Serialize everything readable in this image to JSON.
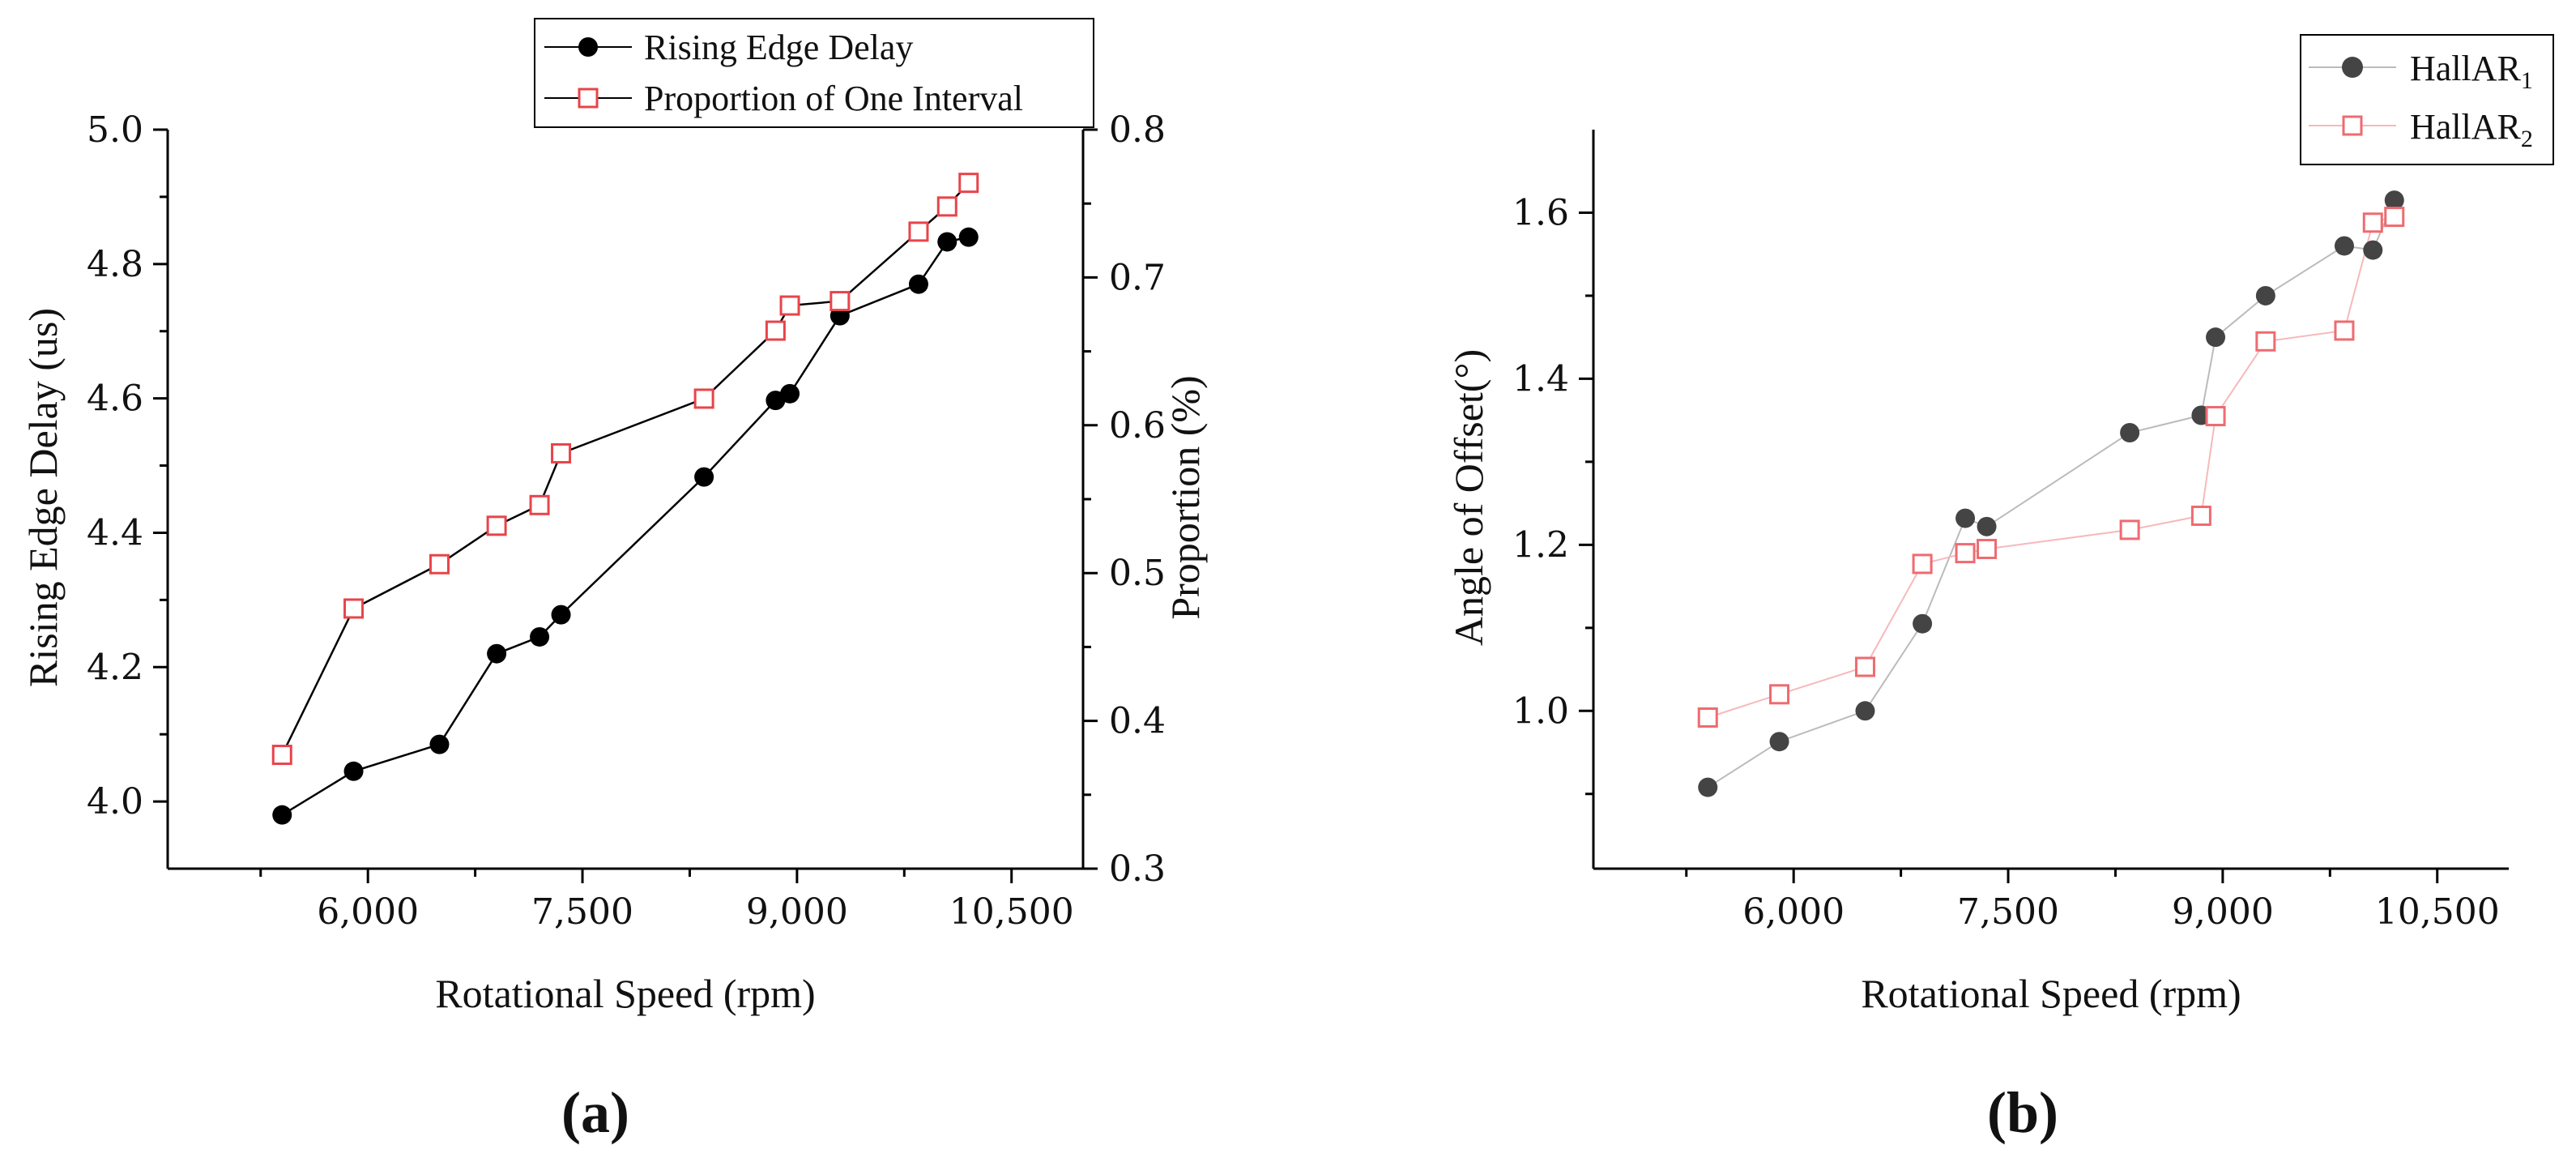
{
  "chart_data": [
    {
      "id": "a",
      "type": "line",
      "panel_label": "(a)",
      "xlabel": "Rotational Speed (rpm)",
      "ylabel": "Rising Edge Delay (us)",
      "y2label": "Proportion (%)",
      "xlim": [
        4600,
        11000
      ],
      "ylim": [
        3.9,
        5.0
      ],
      "y2lim": [
        0.3,
        0.8
      ],
      "xticks": [
        6000,
        7500,
        9000,
        10500
      ],
      "xtick_labels": [
        "6,000",
        "7,500",
        "9,000",
        "10,500"
      ],
      "yticks": [
        4.0,
        4.2,
        4.4,
        4.6,
        4.8,
        5.0
      ],
      "ytick_labels": [
        "4.0",
        "4.2",
        "4.4",
        "4.6",
        "4.8",
        "5.0"
      ],
      "y2ticks": [
        0.3,
        0.4,
        0.5,
        0.6,
        0.7,
        0.8
      ],
      "y2tick_labels": [
        "0.3",
        "0.4",
        "0.5",
        "0.6",
        "0.7",
        "0.8"
      ],
      "legend_position": "top-right",
      "series": [
        {
          "name": "Rising Edge Delay",
          "axis": "left",
          "marker": "filled-circle",
          "color": "#000000",
          "x": [
            5400,
            5900,
            6500,
            6900,
            7200,
            7350,
            8350,
            8850,
            8950,
            9300,
            9850,
            10050,
            10200
          ],
          "y": [
            3.98,
            4.045,
            4.085,
            4.22,
            4.245,
            4.278,
            4.483,
            4.597,
            4.607,
            4.723,
            4.77,
            4.833,
            4.84
          ]
        },
        {
          "name": "Proportion of One Interval",
          "axis": "right",
          "marker": "open-square",
          "color": "#e8444a",
          "x": [
            5400,
            5900,
            6500,
            6900,
            7200,
            7350,
            8350,
            8850,
            8950,
            9300,
            9850,
            10050,
            10200
          ],
          "y": [
            0.377,
            0.476,
            0.506,
            0.532,
            0.546,
            0.581,
            0.618,
            0.664,
            0.681,
            0.684,
            0.731,
            0.748,
            0.764
          ]
        }
      ]
    },
    {
      "id": "b",
      "type": "line",
      "panel_label": "(b)",
      "xlabel": "Rotational Speed (rpm)",
      "ylabel": "Angle of Offset(°)",
      "xlim": [
        4600,
        11000
      ],
      "ylim": [
        0.81,
        1.7
      ],
      "xticks": [
        6000,
        7500,
        9000,
        10500
      ],
      "xtick_labels": [
        "6,000",
        "7,500",
        "9,000",
        "10,500"
      ],
      "yticks": [
        1.0,
        1.2,
        1.4,
        1.6
      ],
      "ytick_labels": [
        "1.0",
        "1.2",
        "1.4",
        "1.6"
      ],
      "legend_position": "top-right",
      "series": [
        {
          "name": "HallAR",
          "subscript": "1",
          "marker": "filled-circle",
          "color": "#444444",
          "line_color": "#bbbbbb",
          "x": [
            5400,
            5900,
            6500,
            6900,
            7200,
            7350,
            8350,
            8850,
            8950,
            9300,
            9850,
            10050,
            10200
          ],
          "y": [
            0.908,
            0.963,
            1.0,
            1.105,
            1.232,
            1.222,
            1.335,
            1.356,
            1.45,
            1.5,
            1.56,
            1.555,
            1.615
          ]
        },
        {
          "name": "HallAR",
          "subscript": "2",
          "marker": "open-square",
          "color": "#ee6b70",
          "line_color": "#f6b9bc",
          "x": [
            5400,
            5900,
            6500,
            6900,
            7200,
            7350,
            8350,
            8850,
            8950,
            9300,
            9850,
            10050,
            10200
          ],
          "y": [
            0.992,
            1.02,
            1.053,
            1.177,
            1.19,
            1.195,
            1.218,
            1.235,
            1.355,
            1.445,
            1.458,
            1.588,
            1.595
          ]
        }
      ]
    }
  ]
}
